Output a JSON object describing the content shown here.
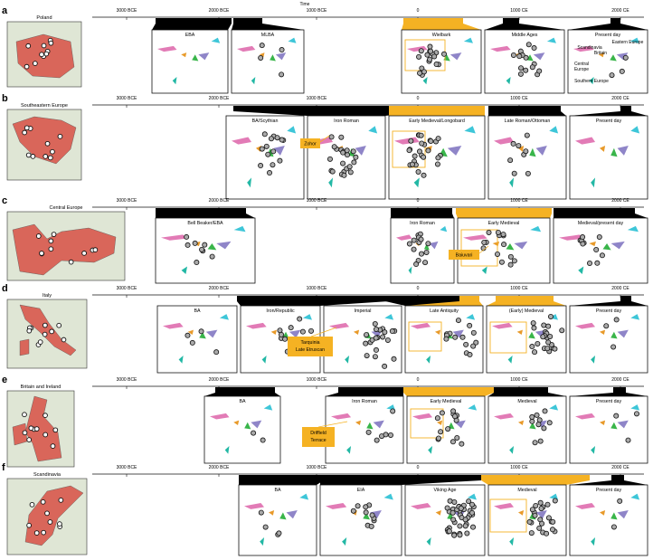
{
  "axis_title": "Time",
  "tick_labels": [
    "3000 BCE",
    "2000 BCE",
    "1000 BCE",
    "0",
    "1000 CE",
    "2000 CE"
  ],
  "pca_labels": {
    "scandinavia": "Scandinavia",
    "eastern_europe": "Eastern Europe",
    "britain": "Britain",
    "central_europe_1": "Central",
    "central_europe_2": "Europe",
    "southern_europe": "Southern Europe"
  },
  "colors": {
    "black": "#000000",
    "orange": "#f5b223",
    "map_fill": "#d9665a",
    "map_bg": "#dfe6d5",
    "sample": "#aaaaaa"
  },
  "rows": [
    {
      "letter": "a",
      "region": "Poland",
      "panels": [
        "EBA",
        "MLBA",
        "Wielbark",
        "Middle Ages",
        "Present day"
      ],
      "annotation": ""
    },
    {
      "letter": "b",
      "region": "Southeastern Europe",
      "panels": [
        "BA/Scythian",
        "Iron Roman",
        "Early Medieval/Longobard",
        "Late Roman/Ottoman",
        "Present day"
      ],
      "annotation": "Zohor"
    },
    {
      "letter": "c",
      "region": "Central Europe",
      "panels": [
        "Bell Beaker/EBA",
        "Iron Roman",
        "Early Medieval",
        "Medieval/present day"
      ],
      "annotation": "Baiuvari"
    },
    {
      "letter": "d",
      "region": "Italy",
      "panels": [
        "BA",
        "Iron/Republic",
        "Imperial",
        "Late Antiquity",
        "(Early) Medieval",
        "Present day"
      ],
      "annotation": "Tarquinia Late Etruscan"
    },
    {
      "letter": "e",
      "region": "Britain and Ireland",
      "panels": [
        "BA",
        "Iron Roman",
        "Early Medieval",
        "Medieval",
        "Present day"
      ],
      "annotation": "Driffield Terrace"
    },
    {
      "letter": "f",
      "region": "Scandinavia",
      "panels": [
        "BA",
        "EIA",
        "Viking Age",
        "Medieval",
        "Present day"
      ],
      "annotation": ""
    }
  ]
}
